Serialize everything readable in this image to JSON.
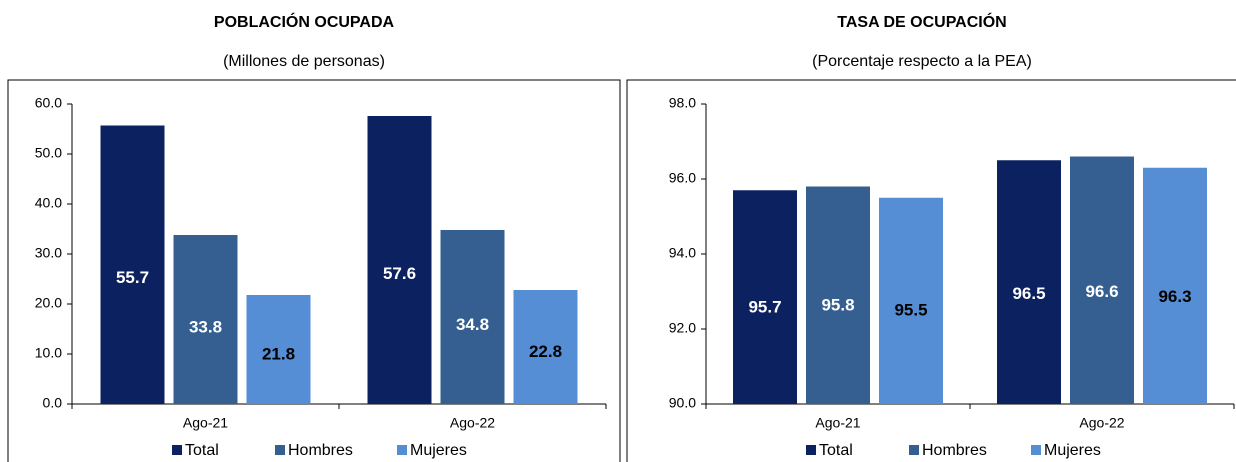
{
  "chart_data": [
    {
      "type": "bar",
      "title": "POBLACIÓN OCUPADA",
      "subtitle": "(Millones de personas)",
      "categories": [
        "Ago-21",
        "Ago-22"
      ],
      "series": [
        {
          "name": "Total",
          "color": "#0c2160",
          "label_color": "#ffffff",
          "values": [
            55.7,
            57.6
          ]
        },
        {
          "name": "Hombres",
          "color": "#365f91",
          "label_color": "#ffffff",
          "values": [
            33.8,
            34.8
          ]
        },
        {
          "name": "Mujeres",
          "color": "#558ed5",
          "label_color": "#000000",
          "values": [
            21.8,
            22.8
          ]
        }
      ],
      "ylim": [
        0,
        60
      ],
      "yticks": [
        {
          "value": 0,
          "label": "0.0"
        },
        {
          "value": 10,
          "label": "10.0"
        },
        {
          "value": 20,
          "label": "20.0"
        },
        {
          "value": 30,
          "label": "30.0"
        },
        {
          "value": 40,
          "label": "40.0"
        },
        {
          "value": 50,
          "label": "50.0"
        },
        {
          "value": 60,
          "label": "60.0"
        }
      ]
    },
    {
      "type": "bar",
      "title": "TASA DE OCUPACIÓN",
      "subtitle": "(Porcentaje respecto a la PEA)",
      "categories": [
        "Ago-21",
        "Ago-22"
      ],
      "series": [
        {
          "name": "Total",
          "color": "#0c2160",
          "label_color": "#ffffff",
          "values": [
            95.7,
            96.5
          ]
        },
        {
          "name": "Hombres",
          "color": "#365f91",
          "label_color": "#ffffff",
          "values": [
            95.8,
            96.6
          ]
        },
        {
          "name": "Mujeres",
          "color": "#558ed5",
          "label_color": "#000000",
          "values": [
            95.5,
            96.3
          ]
        }
      ],
      "ylim": [
        90,
        98
      ],
      "yticks": [
        {
          "value": 90,
          "label": "90.0"
        },
        {
          "value": 92,
          "label": "92.0"
        },
        {
          "value": 94,
          "label": "94.0"
        },
        {
          "value": 96,
          "label": "96.0"
        },
        {
          "value": 98,
          "label": "98.0"
        }
      ]
    }
  ]
}
